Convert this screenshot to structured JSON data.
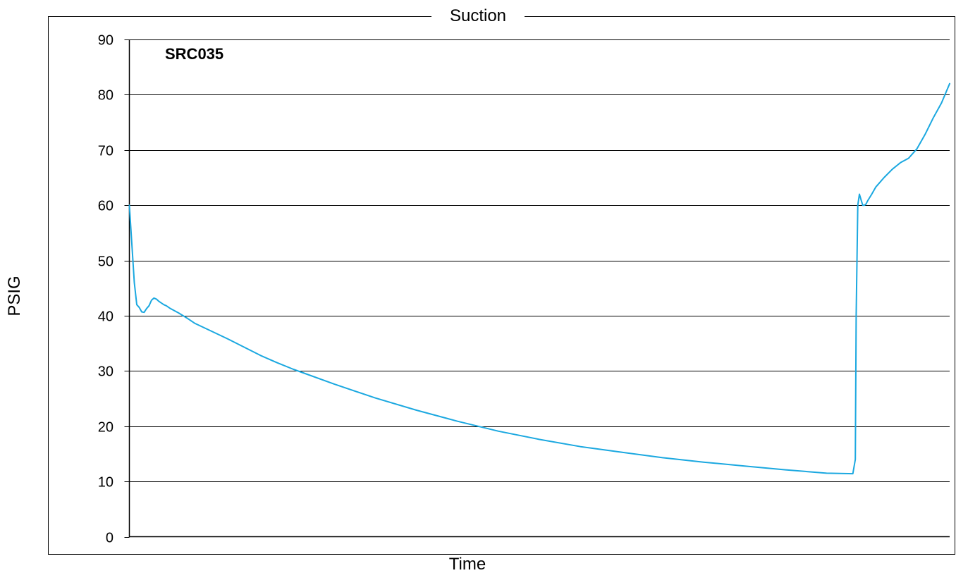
{
  "chart_data": {
    "type": "line",
    "title": "Suction",
    "xlabel": "Time",
    "ylabel": "PSIG",
    "annotation": "SRC035",
    "ylim": [
      0,
      90
    ],
    "yticks": [
      "0",
      "10",
      "20",
      "30",
      "40",
      "50",
      "60",
      "70",
      "80",
      "90"
    ],
    "xlim": [
      0,
      100
    ],
    "grid": "horizontal",
    "legend": "none",
    "series": [
      {
        "color": "#1ba8e0",
        "x": [
          0,
          0.3,
          0.6,
          0.9,
          1.2,
          1.5,
          1.8,
          2.1,
          2.4,
          2.7,
          3.0,
          3.3,
          3.6,
          3.9,
          4.2,
          4.5,
          5,
          6,
          7,
          8,
          10,
          12,
          14,
          16,
          18,
          20,
          25,
          30,
          35,
          40,
          45,
          50,
          55,
          60,
          65,
          70,
          75,
          80,
          85,
          88.2,
          88.5,
          88.6,
          88.8,
          89.0,
          89.2,
          89.4,
          89.6,
          89.8,
          90.0,
          90.5,
          91,
          92,
          93,
          94,
          95,
          96,
          97,
          98,
          99,
          100
        ],
        "y": [
          60,
          53,
          46,
          42,
          41.5,
          40.7,
          40.6,
          41.3,
          41.8,
          42.8,
          43.2,
          43.0,
          42.6,
          42.3,
          42.0,
          41.8,
          41.3,
          40.5,
          39.6,
          38.6,
          37.2,
          35.8,
          34.3,
          32.8,
          31.5,
          30.3,
          27.6,
          25.1,
          22.9,
          20.9,
          19.1,
          17.6,
          16.3,
          15.3,
          14.3,
          13.5,
          12.8,
          12.1,
          11.5,
          11.4,
          14,
          40,
          60,
          62,
          61,
          60,
          60,
          60.2,
          60.8,
          62,
          63.3,
          65,
          66.5,
          67.7,
          68.5,
          70.2,
          72.8,
          75.8,
          78.5,
          82
        ]
      }
    ]
  }
}
